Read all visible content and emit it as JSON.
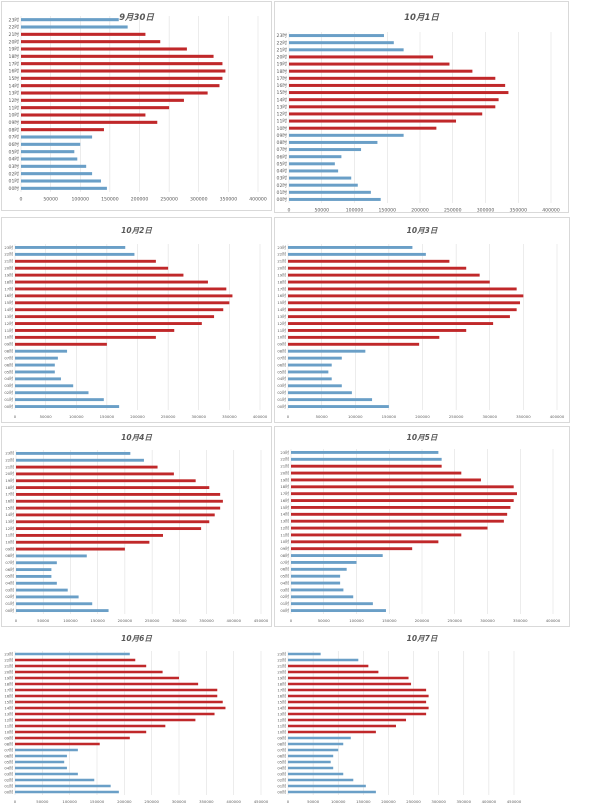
{
  "colors": {
    "day": "#6a9fc7",
    "peak": "#c0282a",
    "grid": "#d9d9d9",
    "tick": "#595959"
  },
  "chart_data": [
    {
      "type": "bar",
      "orientation": "horizontal",
      "title": "9月30日",
      "categories": [
        "00时",
        "01时",
        "02时",
        "03时",
        "04时",
        "05时",
        "06时",
        "07时",
        "08时",
        "09时",
        "10时",
        "11时",
        "12时",
        "13时",
        "14时",
        "15时",
        "16时",
        "17时",
        "18时",
        "19时",
        "20时",
        "21时",
        "22时",
        "23时"
      ],
      "values": [
        145000,
        135000,
        120000,
        110000,
        95000,
        90000,
        100000,
        120000,
        140000,
        230000,
        210000,
        250000,
        275000,
        315000,
        335000,
        340000,
        345000,
        340000,
        325000,
        280000,
        235000,
        210000,
        180000,
        165000
      ],
      "peak_hours": [
        8,
        21
      ],
      "xlim": [
        0,
        400000
      ],
      "xticks": [
        0,
        50000,
        100000,
        150000,
        200000,
        250000,
        300000,
        350000,
        400000
      ],
      "grid": true
    },
    {
      "type": "bar",
      "orientation": "horizontal",
      "title": "10月1日",
      "categories": [
        "00时",
        "01时",
        "02时",
        "03时",
        "04时",
        "05时",
        "06时",
        "07时",
        "08时",
        "09时",
        "10时",
        "11时",
        "12时",
        "13时",
        "14时",
        "15时",
        "16时",
        "17时",
        "18时",
        "19时",
        "20时",
        "21时",
        "22时",
        "23时"
      ],
      "values": [
        140000,
        125000,
        105000,
        95000,
        75000,
        70000,
        80000,
        110000,
        135000,
        175000,
        225000,
        255000,
        295000,
        315000,
        320000,
        335000,
        330000,
        315000,
        280000,
        245000,
        220000,
        175000,
        160000,
        145000
      ],
      "peak_hours": [
        10,
        20
      ],
      "xlim": [
        0,
        400000
      ],
      "xticks": [
        0,
        50000,
        100000,
        150000,
        200000,
        250000,
        300000,
        350000,
        400000
      ],
      "grid": true
    },
    {
      "type": "bar",
      "orientation": "horizontal",
      "title": "10月2日",
      "categories": [
        "00时",
        "01时",
        "02时",
        "03时",
        "04时",
        "05时",
        "06时",
        "07时",
        "08时",
        "09时",
        "10时",
        "11时",
        "12时",
        "13时",
        "14时",
        "15时",
        "16时",
        "17时",
        "18时",
        "19时",
        "20时",
        "21时",
        "22时",
        "23时"
      ],
      "values": [
        170000,
        145000,
        120000,
        95000,
        75000,
        65000,
        65000,
        70000,
        85000,
        150000,
        230000,
        260000,
        305000,
        325000,
        340000,
        350000,
        355000,
        345000,
        315000,
        275000,
        250000,
        230000,
        195000,
        180000
      ],
      "peak_hours": [
        9,
        21
      ],
      "xlim": [
        0,
        400000
      ],
      "xticks": [
        0,
        50000,
        100000,
        150000,
        200000,
        250000,
        300000,
        350000,
        400000
      ],
      "grid": true
    },
    {
      "type": "bar",
      "orientation": "horizontal",
      "title": "10月3日",
      "categories": [
        "00时",
        "01时",
        "02时",
        "03时",
        "04时",
        "05时",
        "06时",
        "07时",
        "08时",
        "09时",
        "10时",
        "11时",
        "12时",
        "13时",
        "14时",
        "15时",
        "16时",
        "17时",
        "18时",
        "19时",
        "20时",
        "21时",
        "22时",
        "23时"
      ],
      "values": [
        150000,
        125000,
        95000,
        80000,
        65000,
        60000,
        65000,
        80000,
        115000,
        195000,
        225000,
        265000,
        305000,
        330000,
        340000,
        345000,
        350000,
        340000,
        300000,
        285000,
        265000,
        240000,
        205000,
        185000
      ],
      "peak_hours": [
        9,
        21
      ],
      "xlim": [
        0,
        400000
      ],
      "xticks": [
        0,
        50000,
        100000,
        150000,
        200000,
        250000,
        300000,
        350000,
        400000
      ],
      "grid": true
    },
    {
      "type": "bar",
      "orientation": "horizontal",
      "title": "10月4日",
      "categories": [
        "00时",
        "01时",
        "02时",
        "03时",
        "04时",
        "05时",
        "06时",
        "07时",
        "08时",
        "09时",
        "10时",
        "11时",
        "12时",
        "13时",
        "14时",
        "15时",
        "16时",
        "17时",
        "18时",
        "19时",
        "20时",
        "21时",
        "22时",
        "23时"
      ],
      "values": [
        170000,
        140000,
        115000,
        95000,
        75000,
        65000,
        65000,
        75000,
        130000,
        200000,
        245000,
        270000,
        340000,
        355000,
        365000,
        375000,
        380000,
        375000,
        355000,
        330000,
        290000,
        260000,
        235000,
        210000
      ],
      "peak_hours": [
        9,
        21
      ],
      "xlim": [
        0,
        450000
      ],
      "xticks": [
        0,
        50000,
        100000,
        150000,
        200000,
        250000,
        300000,
        350000,
        400000,
        450000
      ],
      "grid": true
    },
    {
      "type": "bar",
      "orientation": "horizontal",
      "title": "10月5日",
      "categories": [
        "00时",
        "01时",
        "02时",
        "03时",
        "04时",
        "05时",
        "06时",
        "07时",
        "08时",
        "09时",
        "10时",
        "11时",
        "12时",
        "13时",
        "14时",
        "15时",
        "16时",
        "17时",
        "18时",
        "19时",
        "20时",
        "21时",
        "22时",
        "23时"
      ],
      "values": [
        145000,
        125000,
        95000,
        80000,
        75000,
        75000,
        85000,
        100000,
        140000,
        185000,
        225000,
        260000,
        300000,
        325000,
        330000,
        335000,
        340000,
        345000,
        340000,
        290000,
        260000,
        230000,
        230000,
        225000
      ],
      "peak_hours": [
        9,
        21
      ],
      "xlim": [
        0,
        400000
      ],
      "xticks": [
        0,
        50000,
        100000,
        150000,
        200000,
        250000,
        300000,
        350000,
        400000
      ],
      "grid": true
    },
    {
      "type": "bar",
      "orientation": "horizontal",
      "title": "10月6日",
      "categories": [
        "00时",
        "01时",
        "02时",
        "03时",
        "04时",
        "05时",
        "06时",
        "07时",
        "08时",
        "09时",
        "10时",
        "11时",
        "12时",
        "13时",
        "14时",
        "15时",
        "16时",
        "17时",
        "18时",
        "19时",
        "20时",
        "21时",
        "22时",
        "23时"
      ],
      "values": [
        190000,
        175000,
        145000,
        115000,
        95000,
        90000,
        95000,
        115000,
        155000,
        210000,
        240000,
        275000,
        330000,
        365000,
        385000,
        380000,
        370000,
        370000,
        335000,
        300000,
        270000,
        240000,
        220000,
        210000
      ],
      "peak_hours": [
        8,
        22
      ],
      "xlim": [
        0,
        450000
      ],
      "xticks": [
        0,
        50000,
        100000,
        150000,
        200000,
        250000,
        300000,
        350000,
        400000,
        450000
      ],
      "grid": true
    },
    {
      "type": "bar",
      "orientation": "horizontal",
      "title": "10月7日",
      "categories": [
        "00时",
        "01时",
        "02时",
        "03时",
        "04时",
        "05时",
        "06时",
        "07时",
        "08时",
        "09时",
        "10时",
        "11时",
        "12时",
        "13时",
        "14时",
        "15时",
        "16时",
        "17时",
        "18时",
        "19时",
        "20时",
        "21时",
        "22时",
        "23时"
      ],
      "values": [
        175000,
        155000,
        130000,
        110000,
        90000,
        85000,
        90000,
        100000,
        110000,
        125000,
        175000,
        215000,
        235000,
        275000,
        280000,
        275000,
        280000,
        275000,
        245000,
        240000,
        180000,
        160000,
        140000,
        65000
      ],
      "peak_hours": [
        10,
        21
      ],
      "xlim": [
        0,
        450000
      ],
      "xticks": [
        0,
        50000,
        100000,
        150000,
        200000,
        250000,
        300000,
        350000,
        400000,
        450000
      ],
      "grid": true
    }
  ]
}
